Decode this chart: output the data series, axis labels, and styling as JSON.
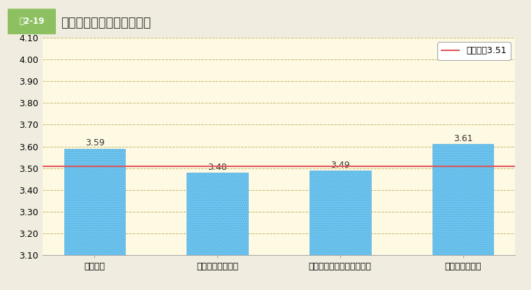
{
  "fig_label": "図2-19",
  "title": "採用区分別の回答の平均値",
  "categories": [
    "総合職等",
    "一般職（大卒）等",
    "一般職（高卒・社会人）等",
    "選考、再任用等"
  ],
  "values": [
    3.59,
    3.48,
    3.49,
    3.61
  ],
  "bar_color": "#6ec6f0",
  "bar_edge_color": "#5ab0e0",
  "hatch": ".....",
  "ylim": [
    3.1,
    4.1
  ],
  "yticks": [
    3.1,
    3.2,
    3.3,
    3.4,
    3.5,
    3.6,
    3.7,
    3.8,
    3.9,
    4.0,
    4.1
  ],
  "mean_line": 3.51,
  "mean_line_color": "#e05858",
  "mean_label": "総平均値3.51",
  "background_color": "#fdf9e3",
  "outer_background": "#f0ede0",
  "grid_color": "#c8b86e",
  "title_color": "#333333",
  "value_label_fontsize": 9,
  "axis_fontsize": 9,
  "title_fontsize": 13,
  "fig_label_bg": "#8dc060",
  "fig_label_text_color": "#ffffff"
}
